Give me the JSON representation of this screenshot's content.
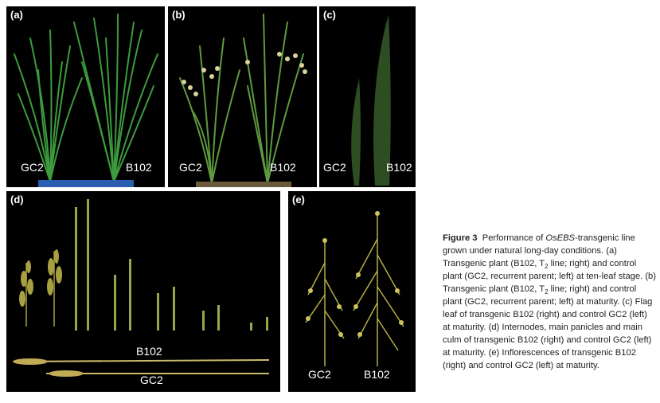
{
  "panels": {
    "a": {
      "label": "(a)",
      "left_tag": "GC2",
      "right_tag": "B102"
    },
    "b": {
      "label": "(b)",
      "left_tag": "GC2",
      "right_tag": "B102"
    },
    "c": {
      "label": "(c)",
      "left_tag": "GC2",
      "right_tag": "B102"
    },
    "d": {
      "label": "(d)",
      "top_tag": "B102",
      "bottom_tag": "GC2"
    },
    "e": {
      "label": "(e)",
      "left_tag": "GC2",
      "right_tag": "B102"
    }
  },
  "caption": {
    "figure_label": "Figure 3",
    "p1": "Performance of ",
    "gene": "OsEBS",
    "p2": "-transgenic line grown under natural long-day conditions. (a) Transgenic plant (B102, T",
    "s1": "2",
    "p3": " line; right) and control plant (GC2, recurrent parent; left) at ten-leaf stage. (b) Transgenic plant (B102, T",
    "s2": "2",
    "p4": " line; right) and control plant (GC2, recurrent parent; left) at maturity. (c) Flag leaf of transgenic B102 (right) and control GC2 (left) at maturity. (d) Internodes, main panicles and main culm of transgenic B102 (right) and control GC2 (left) at maturity. (e) Inflorescences of transgenic B102 (right) and control GC2 (left) at maturity."
  }
}
